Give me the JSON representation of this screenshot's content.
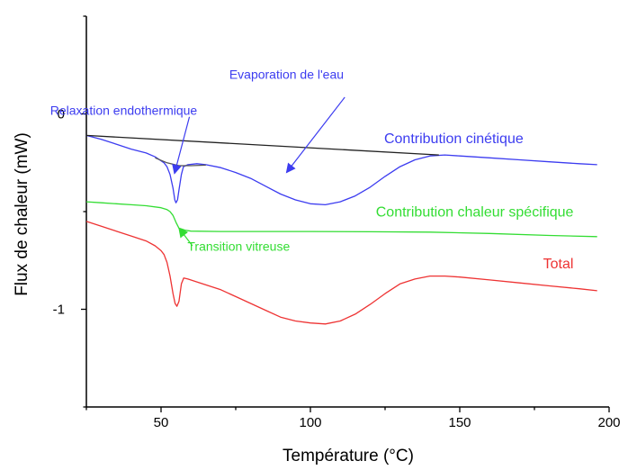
{
  "chart_data": {
    "type": "line",
    "xlabel": "Température (°C)",
    "ylabel": "Flux de chaleur (mW)",
    "xlim": [
      25,
      200
    ],
    "ylim": [
      -1.5,
      0.5
    ],
    "x_ticks": [
      50,
      100,
      150,
      200
    ],
    "y_ticks": [
      0,
      -1
    ],
    "series": [
      {
        "name": "Contribution cinétique",
        "color": "#3c3cf0",
        "points": [
          [
            25,
            -0.11
          ],
          [
            30,
            -0.13
          ],
          [
            35,
            -0.155
          ],
          [
            40,
            -0.18
          ],
          [
            45,
            -0.2
          ],
          [
            48,
            -0.22
          ],
          [
            50,
            -0.24
          ],
          [
            51,
            -0.25
          ],
          [
            52,
            -0.27
          ],
          [
            53,
            -0.31
          ],
          [
            54,
            -0.38
          ],
          [
            54.6,
            -0.44
          ],
          [
            55,
            -0.455
          ],
          [
            55.5,
            -0.44
          ],
          [
            56,
            -0.39
          ],
          [
            56.8,
            -0.31
          ],
          [
            57.5,
            -0.27
          ],
          [
            59,
            -0.26
          ],
          [
            62,
            -0.255
          ],
          [
            65,
            -0.26
          ],
          [
            70,
            -0.275
          ],
          [
            75,
            -0.3
          ],
          [
            80,
            -0.33
          ],
          [
            85,
            -0.37
          ],
          [
            90,
            -0.41
          ],
          [
            95,
            -0.44
          ],
          [
            100,
            -0.46
          ],
          [
            105,
            -0.465
          ],
          [
            110,
            -0.45
          ],
          [
            115,
            -0.42
          ],
          [
            120,
            -0.375
          ],
          [
            125,
            -0.32
          ],
          [
            130,
            -0.27
          ],
          [
            135,
            -0.235
          ],
          [
            140,
            -0.215
          ],
          [
            145,
            -0.21
          ],
          [
            150,
            -0.215
          ],
          [
            160,
            -0.225
          ],
          [
            170,
            -0.235
          ],
          [
            180,
            -0.245
          ],
          [
            190,
            -0.255
          ],
          [
            196,
            -0.26
          ]
        ]
      },
      {
        "name": "Contribution chaleur spécifique",
        "color": "#33dd33",
        "points": [
          [
            25,
            -0.45
          ],
          [
            30,
            -0.455
          ],
          [
            35,
            -0.46
          ],
          [
            40,
            -0.465
          ],
          [
            45,
            -0.47
          ],
          [
            50,
            -0.48
          ],
          [
            52,
            -0.49
          ],
          [
            53,
            -0.5
          ],
          [
            54,
            -0.52
          ],
          [
            55,
            -0.555
          ],
          [
            56,
            -0.585
          ],
          [
            58,
            -0.595
          ],
          [
            60,
            -0.6
          ],
          [
            70,
            -0.602
          ],
          [
            80,
            -0.602
          ],
          [
            100,
            -0.602
          ],
          [
            120,
            -0.603
          ],
          [
            140,
            -0.605
          ],
          [
            160,
            -0.612
          ],
          [
            180,
            -0.622
          ],
          [
            196,
            -0.628
          ]
        ]
      },
      {
        "name": "Total",
        "color": "#ee3333",
        "points": [
          [
            25,
            -0.55
          ],
          [
            30,
            -0.575
          ],
          [
            35,
            -0.6
          ],
          [
            40,
            -0.625
          ],
          [
            45,
            -0.65
          ],
          [
            48,
            -0.675
          ],
          [
            50,
            -0.7
          ],
          [
            51,
            -0.72
          ],
          [
            52,
            -0.76
          ],
          [
            53,
            -0.83
          ],
          [
            54,
            -0.92
          ],
          [
            54.7,
            -0.97
          ],
          [
            55.3,
            -0.985
          ],
          [
            56,
            -0.96
          ],
          [
            56.8,
            -0.87
          ],
          [
            57.6,
            -0.84
          ],
          [
            59,
            -0.845
          ],
          [
            62,
            -0.86
          ],
          [
            65,
            -0.875
          ],
          [
            70,
            -0.9
          ],
          [
            75,
            -0.935
          ],
          [
            80,
            -0.97
          ],
          [
            85,
            -1.005
          ],
          [
            90,
            -1.04
          ],
          [
            95,
            -1.06
          ],
          [
            100,
            -1.07
          ],
          [
            105,
            -1.075
          ],
          [
            110,
            -1.06
          ],
          [
            115,
            -1.025
          ],
          [
            120,
            -0.975
          ],
          [
            125,
            -0.92
          ],
          [
            130,
            -0.87
          ],
          [
            135,
            -0.845
          ],
          [
            140,
            -0.83
          ],
          [
            145,
            -0.83
          ],
          [
            150,
            -0.835
          ],
          [
            160,
            -0.85
          ],
          [
            170,
            -0.865
          ],
          [
            180,
            -0.88
          ],
          [
            190,
            -0.895
          ],
          [
            196,
            -0.905
          ]
        ]
      },
      {
        "name": "baseline",
        "color": "#222222",
        "points": [
          [
            25,
            -0.11
          ],
          [
            143,
            -0.21
          ]
        ]
      },
      {
        "name": "relaxation-shoulder",
        "color": "#555555",
        "points": [
          [
            48,
            -0.225
          ],
          [
            52,
            -0.25
          ],
          [
            56,
            -0.265
          ],
          [
            60,
            -0.265
          ],
          [
            65,
            -0.262
          ]
        ]
      }
    ],
    "annotations": [
      {
        "text": "Relaxation endothermique",
        "color": "#3c3cf0",
        "size": 14,
        "at": [
          37.5,
          -0.005
        ]
      },
      {
        "text": "Evaporation de l'eau",
        "color": "#3c3cf0",
        "size": 14,
        "at": [
          92,
          0.18
        ]
      },
      {
        "text": "Contribution cinétique",
        "color": "#3c3cf0",
        "size": 16,
        "at": [
          148,
          -0.15
        ]
      },
      {
        "text": "Contribution chaleur spécifique",
        "color": "#33dd33",
        "size": 16,
        "at": [
          155,
          -0.525
        ]
      },
      {
        "text": "Transition vitreuse",
        "color": "#33dd33",
        "size": 14,
        "at": [
          76,
          -0.7
        ]
      },
      {
        "text": "Total",
        "color": "#ee3333",
        "size": 16,
        "at": [
          183,
          -0.79
        ]
      }
    ],
    "arrows": [
      {
        "from": [
          59.5,
          -0.015
        ],
        "to": [
          54.5,
          -0.305
        ],
        "color": "#3c3cf0"
      },
      {
        "from": [
          111.5,
          0.085
        ],
        "to": [
          92,
          -0.3
        ],
        "color": "#3c3cf0"
      },
      {
        "from": [
          60.5,
          -0.675
        ],
        "to": [
          56,
          -0.585
        ],
        "color": "#33dd33"
      }
    ],
    "grid": false,
    "legend": "none"
  }
}
